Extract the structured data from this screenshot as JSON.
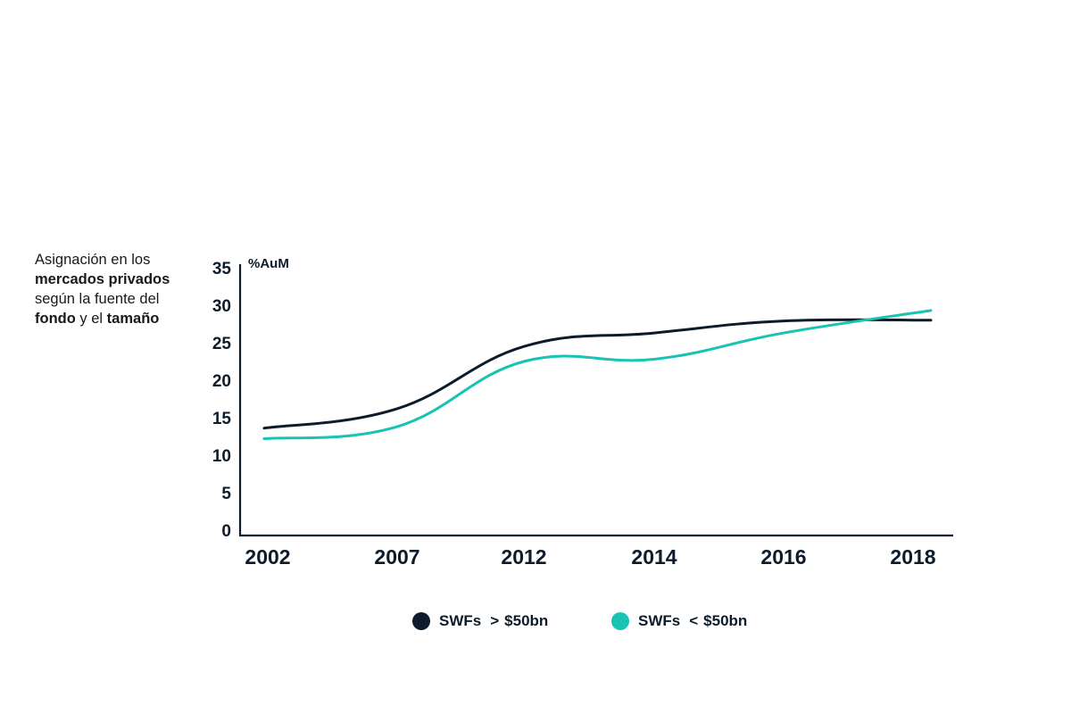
{
  "caption": {
    "line1": "Asignación en los",
    "line2_bold": "mercados privados",
    "line3": "según la fuente del",
    "line4_bold_a": "fondo",
    "line4_mid": " y el ",
    "line4_bold_b": "tamaño"
  },
  "colors": {
    "series_dark": "#0d1b2a",
    "series_teal": "#17c3b2",
    "axis": "#0d1b2a"
  },
  "chart_data": {
    "type": "line",
    "title": "",
    "xlabel": "",
    "ylabel": "%AuM",
    "categories": [
      "2002",
      "2007",
      "2012",
      "2014",
      "2016",
      "2018"
    ],
    "ylim": [
      0,
      35
    ],
    "yticks": [
      0,
      5,
      10,
      15,
      20,
      25,
      30,
      35
    ],
    "grid": false,
    "legend_position": "bottom",
    "series": [
      {
        "name": "SWFs > $50bn",
        "color": "#0d1b2a",
        "values": [
          13.6,
          16.2,
          24.5,
          26.3,
          27.9,
          28.0
        ]
      },
      {
        "name": "SWFs < $50bn",
        "color": "#17c3b2",
        "values": [
          12.2,
          13.8,
          22.5,
          22.8,
          26.3,
          29.3
        ]
      }
    ]
  },
  "legend": {
    "item1_prefix": "SWFs",
    "item1_symbol": ">",
    "item1_suffix": "$50bn",
    "item2_prefix": "SWFs",
    "item2_symbol": "<",
    "item2_suffix": "$50bn"
  }
}
